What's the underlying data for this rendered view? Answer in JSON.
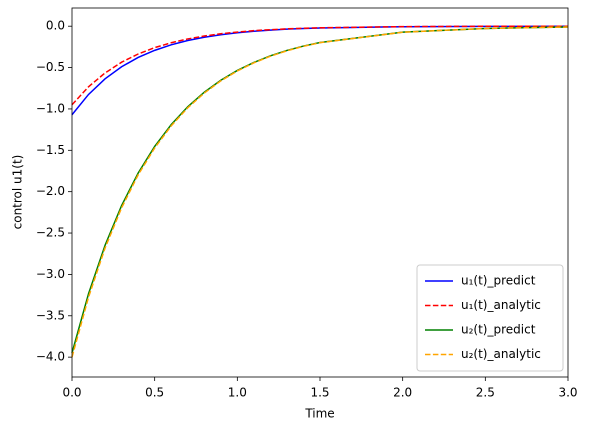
{
  "chart_data": {
    "type": "line",
    "xlabel": "Time",
    "ylabel": "control u1(t)",
    "x": [
      0,
      0.1,
      0.2,
      0.3,
      0.4,
      0.5,
      0.6,
      0.7,
      0.8,
      0.9,
      1.0,
      1.1,
      1.2,
      1.3,
      1.4,
      1.5,
      2.0,
      2.5,
      3.0
    ],
    "series": [
      {
        "name": "u₁(t)_predict",
        "color": "#0000ff",
        "dash": "solid",
        "values": [
          -1.07,
          -0.825,
          -0.636,
          -0.49,
          -0.378,
          -0.292,
          -0.225,
          -0.173,
          -0.134,
          -0.103,
          -0.079,
          -0.061,
          -0.047,
          -0.036,
          -0.028,
          -0.022,
          -0.006,
          -0.002,
          0.0
        ]
      },
      {
        "name": "u₁(t)_analytic",
        "color": "#ff0000",
        "dash": "dashed",
        "values": [
          -0.95,
          -0.732,
          -0.565,
          -0.435,
          -0.336,
          -0.259,
          -0.2,
          -0.154,
          -0.119,
          -0.091,
          -0.071,
          -0.054,
          -0.042,
          -0.032,
          -0.025,
          -0.019,
          -0.005,
          -0.001,
          0.0
        ]
      },
      {
        "name": "u₂(t)_predict",
        "color": "#008000",
        "dash": "solid",
        "values": [
          -3.95,
          -3.234,
          -2.648,
          -2.168,
          -1.775,
          -1.453,
          -1.19,
          -0.974,
          -0.798,
          -0.653,
          -0.535,
          -0.438,
          -0.358,
          -0.293,
          -0.24,
          -0.197,
          -0.072,
          -0.027,
          -0.01
        ]
      },
      {
        "name": "u₂(t)_analytic",
        "color": "#ffa500",
        "dash": "dashed",
        "values": [
          -4.0,
          -3.275,
          -2.681,
          -2.195,
          -1.797,
          -1.472,
          -1.205,
          -0.986,
          -0.808,
          -0.661,
          -0.541,
          -0.443,
          -0.363,
          -0.297,
          -0.243,
          -0.199,
          -0.073,
          -0.027,
          -0.01
        ]
      }
    ],
    "xlim": [
      0,
      3
    ],
    "xticks": [
      {
        "value": 0,
        "label": "0.0"
      },
      0.5,
      {
        "value": 1,
        "label": "1.0"
      },
      1.5,
      {
        "value": 2,
        "label": "2.0"
      },
      2.5,
      {
        "value": 3,
        "label": "3.0"
      }
    ],
    "ylim": [
      -4.24,
      0.22
    ],
    "yticks": [
      {
        "value": 0,
        "label": "0.0"
      },
      {
        "value": -0.5,
        "label": "−0.5"
      },
      {
        "value": -1,
        "label": "−1.0"
      },
      {
        "value": -1.5,
        "label": "−1.5"
      },
      {
        "value": -2,
        "label": "−2.0"
      },
      {
        "value": -2.5,
        "label": "−2.5"
      },
      {
        "value": -3,
        "label": "−3.0"
      },
      {
        "value": -3.5,
        "label": "−3.5"
      },
      {
        "value": -4,
        "label": "−4.0"
      }
    ],
    "grid": false,
    "legend": "lower right"
  }
}
